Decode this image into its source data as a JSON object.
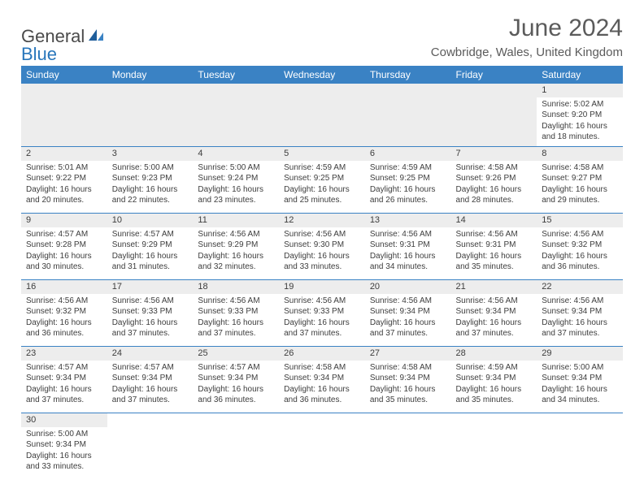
{
  "logo": {
    "text1": "General",
    "text2": "Blue"
  },
  "title": "June 2024",
  "location": "Cowbridge, Wales, United Kingdom",
  "colors": {
    "header_bg": "#3a82c4",
    "header_text": "#ffffff",
    "daynum_bg": "#ededed",
    "text": "#3d3d3d",
    "rule": "#3a82c4",
    "logo_gray": "#4a4a4a",
    "logo_blue": "#2876bb"
  },
  "typography": {
    "title_fontsize": 30,
    "location_fontsize": 15,
    "dayheader_fontsize": 12,
    "cell_fontsize": 10
  },
  "day_headers": [
    "Sunday",
    "Monday",
    "Tuesday",
    "Wednesday",
    "Thursday",
    "Friday",
    "Saturday"
  ],
  "weeks": [
    [
      null,
      null,
      null,
      null,
      null,
      null,
      {
        "n": "1",
        "sr": "Sunrise: 5:02 AM",
        "ss": "Sunset: 9:20 PM",
        "d1": "Daylight: 16 hours",
        "d2": "and 18 minutes."
      }
    ],
    [
      {
        "n": "2",
        "sr": "Sunrise: 5:01 AM",
        "ss": "Sunset: 9:22 PM",
        "d1": "Daylight: 16 hours",
        "d2": "and 20 minutes."
      },
      {
        "n": "3",
        "sr": "Sunrise: 5:00 AM",
        "ss": "Sunset: 9:23 PM",
        "d1": "Daylight: 16 hours",
        "d2": "and 22 minutes."
      },
      {
        "n": "4",
        "sr": "Sunrise: 5:00 AM",
        "ss": "Sunset: 9:24 PM",
        "d1": "Daylight: 16 hours",
        "d2": "and 23 minutes."
      },
      {
        "n": "5",
        "sr": "Sunrise: 4:59 AM",
        "ss": "Sunset: 9:25 PM",
        "d1": "Daylight: 16 hours",
        "d2": "and 25 minutes."
      },
      {
        "n": "6",
        "sr": "Sunrise: 4:59 AM",
        "ss": "Sunset: 9:25 PM",
        "d1": "Daylight: 16 hours",
        "d2": "and 26 minutes."
      },
      {
        "n": "7",
        "sr": "Sunrise: 4:58 AM",
        "ss": "Sunset: 9:26 PM",
        "d1": "Daylight: 16 hours",
        "d2": "and 28 minutes."
      },
      {
        "n": "8",
        "sr": "Sunrise: 4:58 AM",
        "ss": "Sunset: 9:27 PM",
        "d1": "Daylight: 16 hours",
        "d2": "and 29 minutes."
      }
    ],
    [
      {
        "n": "9",
        "sr": "Sunrise: 4:57 AM",
        "ss": "Sunset: 9:28 PM",
        "d1": "Daylight: 16 hours",
        "d2": "and 30 minutes."
      },
      {
        "n": "10",
        "sr": "Sunrise: 4:57 AM",
        "ss": "Sunset: 9:29 PM",
        "d1": "Daylight: 16 hours",
        "d2": "and 31 minutes."
      },
      {
        "n": "11",
        "sr": "Sunrise: 4:56 AM",
        "ss": "Sunset: 9:29 PM",
        "d1": "Daylight: 16 hours",
        "d2": "and 32 minutes."
      },
      {
        "n": "12",
        "sr": "Sunrise: 4:56 AM",
        "ss": "Sunset: 9:30 PM",
        "d1": "Daylight: 16 hours",
        "d2": "and 33 minutes."
      },
      {
        "n": "13",
        "sr": "Sunrise: 4:56 AM",
        "ss": "Sunset: 9:31 PM",
        "d1": "Daylight: 16 hours",
        "d2": "and 34 minutes."
      },
      {
        "n": "14",
        "sr": "Sunrise: 4:56 AM",
        "ss": "Sunset: 9:31 PM",
        "d1": "Daylight: 16 hours",
        "d2": "and 35 minutes."
      },
      {
        "n": "15",
        "sr": "Sunrise: 4:56 AM",
        "ss": "Sunset: 9:32 PM",
        "d1": "Daylight: 16 hours",
        "d2": "and 36 minutes."
      }
    ],
    [
      {
        "n": "16",
        "sr": "Sunrise: 4:56 AM",
        "ss": "Sunset: 9:32 PM",
        "d1": "Daylight: 16 hours",
        "d2": "and 36 minutes."
      },
      {
        "n": "17",
        "sr": "Sunrise: 4:56 AM",
        "ss": "Sunset: 9:33 PM",
        "d1": "Daylight: 16 hours",
        "d2": "and 37 minutes."
      },
      {
        "n": "18",
        "sr": "Sunrise: 4:56 AM",
        "ss": "Sunset: 9:33 PM",
        "d1": "Daylight: 16 hours",
        "d2": "and 37 minutes."
      },
      {
        "n": "19",
        "sr": "Sunrise: 4:56 AM",
        "ss": "Sunset: 9:33 PM",
        "d1": "Daylight: 16 hours",
        "d2": "and 37 minutes."
      },
      {
        "n": "20",
        "sr": "Sunrise: 4:56 AM",
        "ss": "Sunset: 9:34 PM",
        "d1": "Daylight: 16 hours",
        "d2": "and 37 minutes."
      },
      {
        "n": "21",
        "sr": "Sunrise: 4:56 AM",
        "ss": "Sunset: 9:34 PM",
        "d1": "Daylight: 16 hours",
        "d2": "and 37 minutes."
      },
      {
        "n": "22",
        "sr": "Sunrise: 4:56 AM",
        "ss": "Sunset: 9:34 PM",
        "d1": "Daylight: 16 hours",
        "d2": "and 37 minutes."
      }
    ],
    [
      {
        "n": "23",
        "sr": "Sunrise: 4:57 AM",
        "ss": "Sunset: 9:34 PM",
        "d1": "Daylight: 16 hours",
        "d2": "and 37 minutes."
      },
      {
        "n": "24",
        "sr": "Sunrise: 4:57 AM",
        "ss": "Sunset: 9:34 PM",
        "d1": "Daylight: 16 hours",
        "d2": "and 37 minutes."
      },
      {
        "n": "25",
        "sr": "Sunrise: 4:57 AM",
        "ss": "Sunset: 9:34 PM",
        "d1": "Daylight: 16 hours",
        "d2": "and 36 minutes."
      },
      {
        "n": "26",
        "sr": "Sunrise: 4:58 AM",
        "ss": "Sunset: 9:34 PM",
        "d1": "Daylight: 16 hours",
        "d2": "and 36 minutes."
      },
      {
        "n": "27",
        "sr": "Sunrise: 4:58 AM",
        "ss": "Sunset: 9:34 PM",
        "d1": "Daylight: 16 hours",
        "d2": "and 35 minutes."
      },
      {
        "n": "28",
        "sr": "Sunrise: 4:59 AM",
        "ss": "Sunset: 9:34 PM",
        "d1": "Daylight: 16 hours",
        "d2": "and 35 minutes."
      },
      {
        "n": "29",
        "sr": "Sunrise: 5:00 AM",
        "ss": "Sunset: 9:34 PM",
        "d1": "Daylight: 16 hours",
        "d2": "and 34 minutes."
      }
    ],
    [
      {
        "n": "30",
        "sr": "Sunrise: 5:00 AM",
        "ss": "Sunset: 9:34 PM",
        "d1": "Daylight: 16 hours",
        "d2": "and 33 minutes."
      },
      null,
      null,
      null,
      null,
      null,
      null
    ]
  ]
}
